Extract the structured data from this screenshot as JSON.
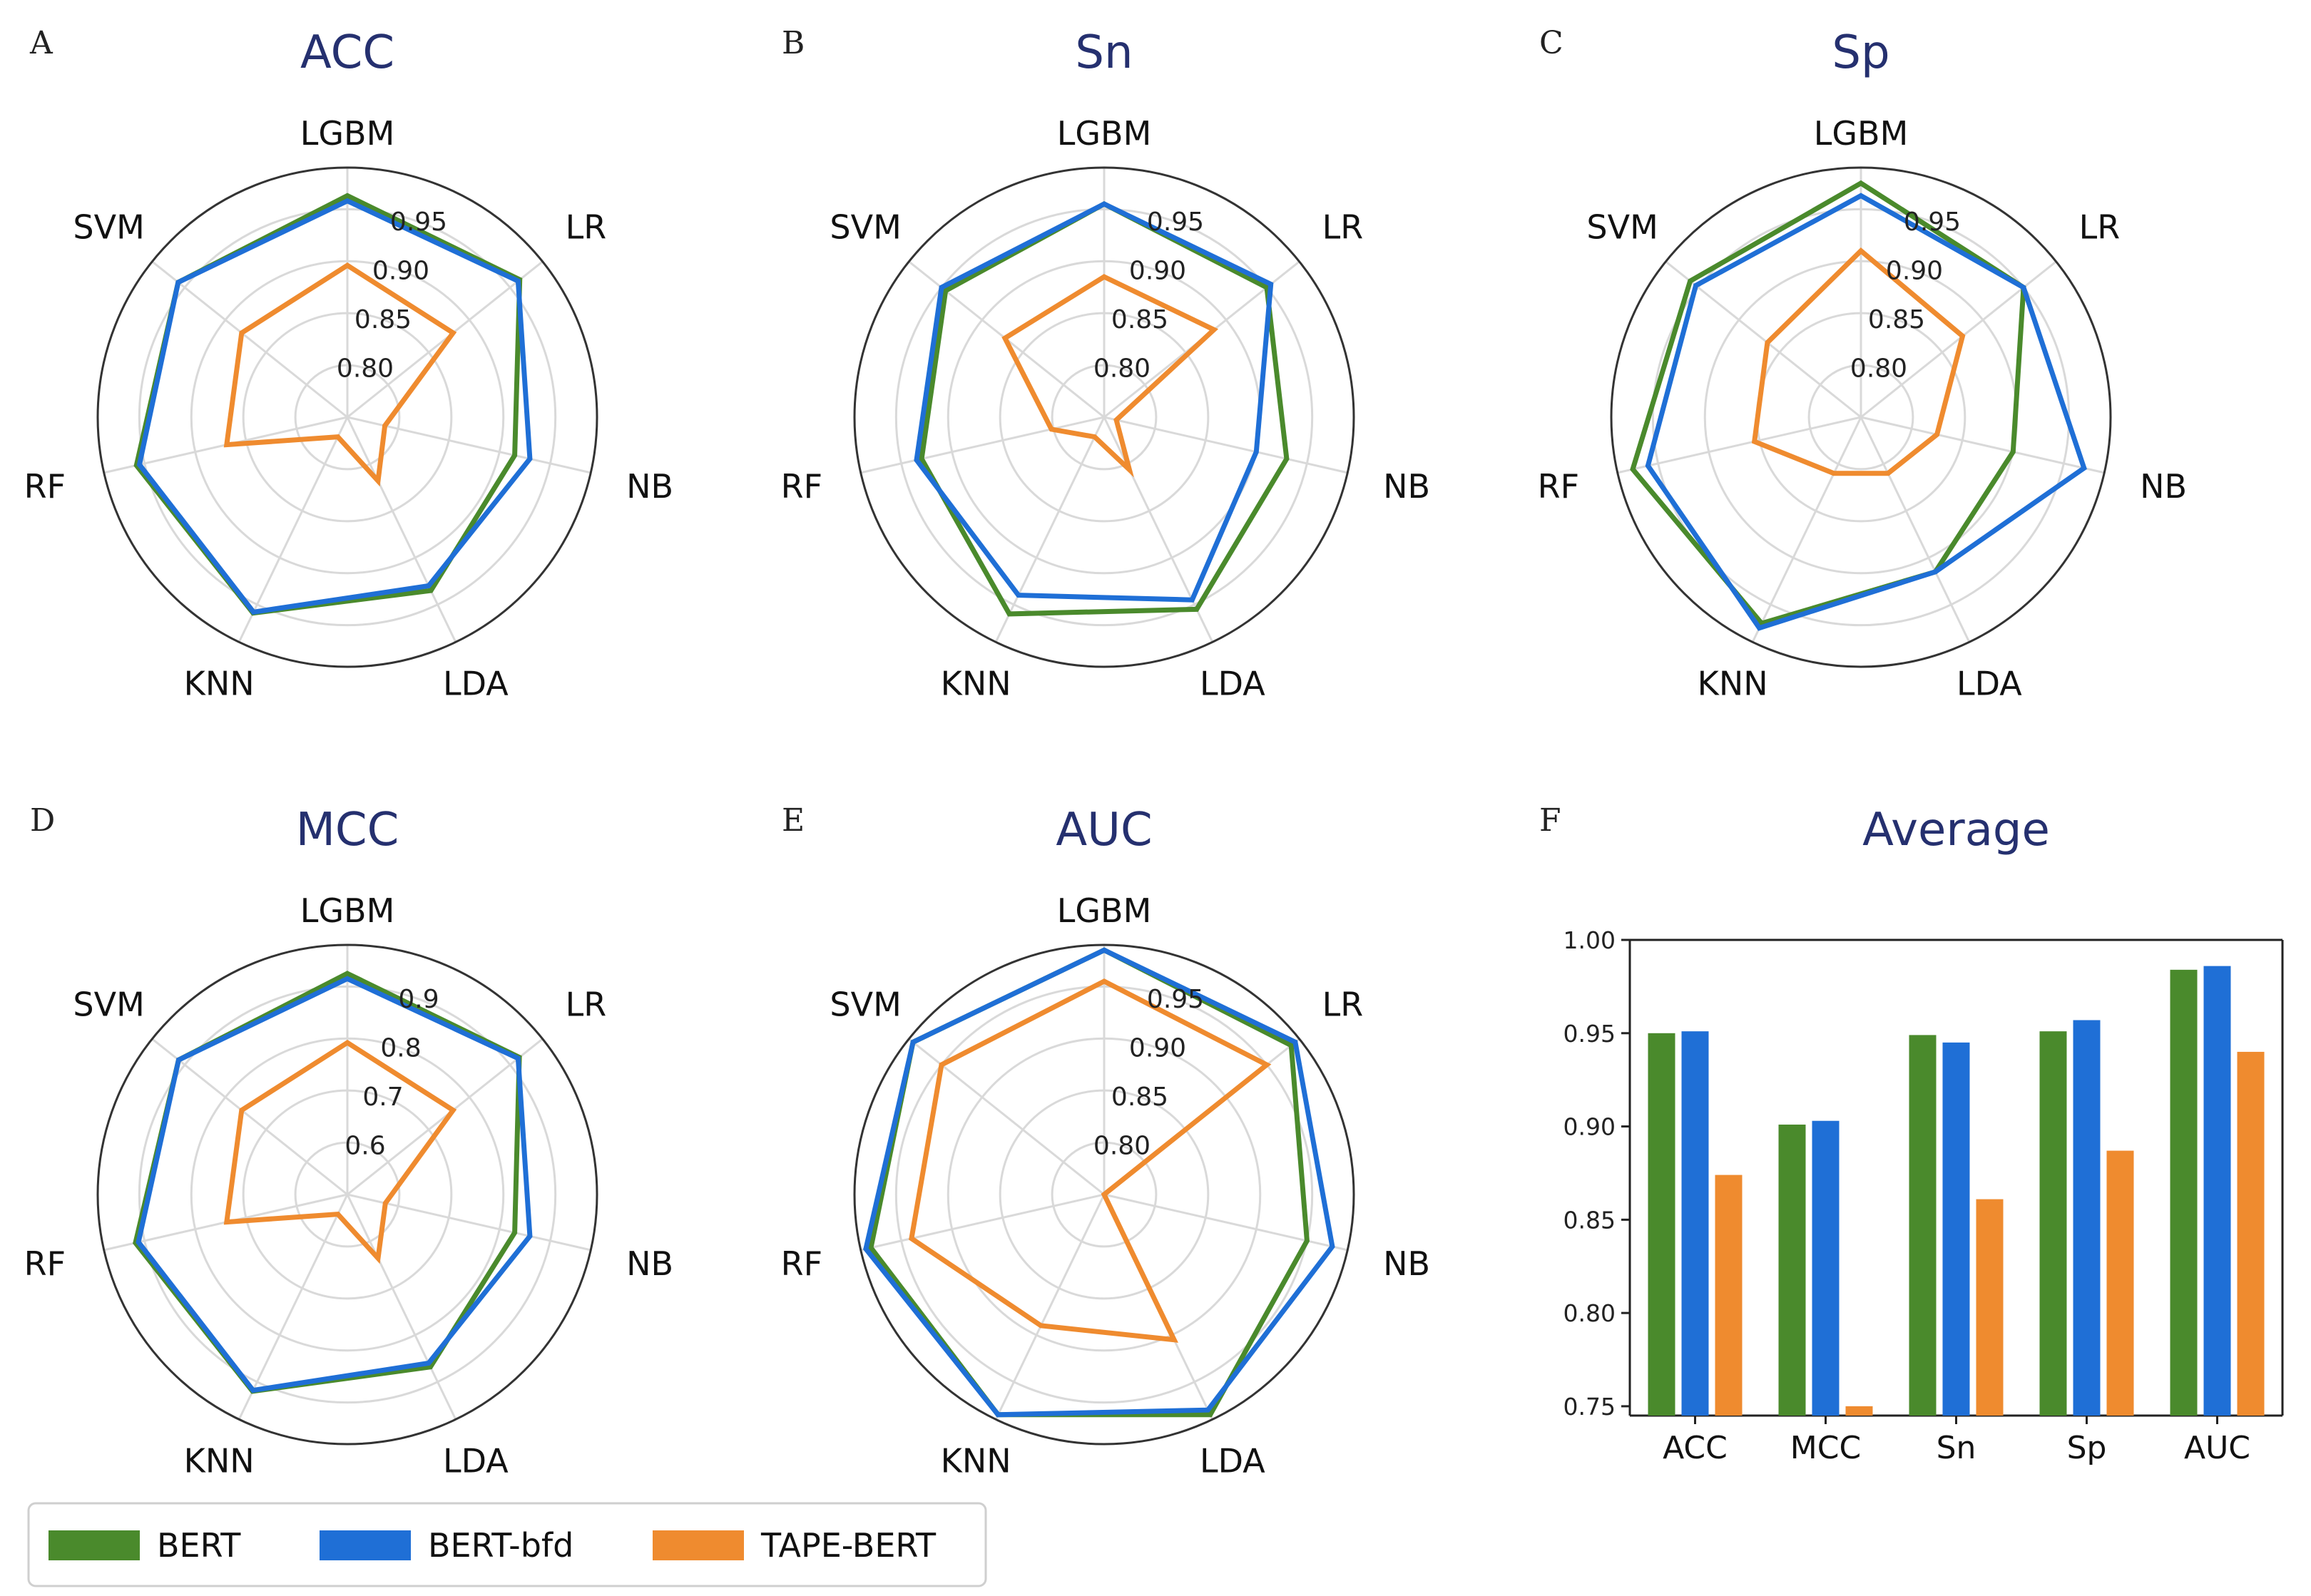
{
  "colors": {
    "BERT": "#4a8a2c",
    "BERT-bfd": "#1f6fd6",
    "TAPE-BERT": "#ef8b2f",
    "title": "#25306f"
  },
  "legend": [
    "BERT",
    "BERT-bfd",
    "TAPE-BERT"
  ],
  "chart_data": [
    {
      "type": "radar",
      "letter": "A",
      "title": "ACC",
      "axes": [
        "LGBM",
        "LR",
        "NB",
        "LDA",
        "KNN",
        "RF",
        "SVM"
      ],
      "rlim": [
        0.75,
        0.99
      ],
      "rticks": [
        0.8,
        0.85,
        0.9,
        0.95
      ],
      "rtick_labels": [
        "0.80",
        "0.85",
        "0.90",
        "0.95"
      ],
      "series": [
        {
          "name": "BERT",
          "values": [
            0.963,
            0.962,
            0.915,
            0.935,
            0.959,
            0.958,
            0.958
          ]
        },
        {
          "name": "BERT-bfd",
          "values": [
            0.958,
            0.96,
            0.93,
            0.93,
            0.958,
            0.955,
            0.958
          ]
        },
        {
          "name": "TAPE-BERT",
          "values": [
            0.896,
            0.88,
            0.787,
            0.818,
            0.771,
            0.869,
            0.88
          ]
        }
      ]
    },
    {
      "type": "radar",
      "letter": "B",
      "title": "Sn",
      "axes": [
        "LGBM",
        "LR",
        "NB",
        "LDA",
        "KNN",
        "RF",
        "SVM"
      ],
      "rlim": [
        0.75,
        0.99
      ],
      "rticks": [
        0.8,
        0.85,
        0.9,
        0.95
      ],
      "rtick_labels": [
        "0.80",
        "0.85",
        "0.90",
        "0.95"
      ],
      "series": [
        {
          "name": "BERT",
          "values": [
            0.955,
            0.95,
            0.93,
            0.955,
            0.96,
            0.93,
            0.945
          ]
        },
        {
          "name": "BERT-bfd",
          "values": [
            0.955,
            0.955,
            0.9,
            0.945,
            0.94,
            0.935,
            0.95
          ]
        },
        {
          "name": "TAPE-BERT",
          "values": [
            0.885,
            0.885,
            0.762,
            0.806,
            0.771,
            0.802,
            0.872
          ]
        }
      ]
    },
    {
      "type": "radar",
      "letter": "C",
      "title": "Sp",
      "axes": [
        "LGBM",
        "LR",
        "NB",
        "LDA",
        "KNN",
        "RF",
        "SVM"
      ],
      "rlim": [
        0.75,
        0.99
      ],
      "rticks": [
        0.8,
        0.85,
        0.9,
        0.95
      ],
      "rtick_labels": [
        "0.80",
        "0.85",
        "0.90",
        "0.95"
      ],
      "series": [
        {
          "name": "BERT",
          "values": [
            0.975,
            0.95,
            0.9,
            0.915,
            0.97,
            0.975,
            0.96
          ]
        },
        {
          "name": "BERT-bfd",
          "values": [
            0.963,
            0.95,
            0.97,
            0.915,
            0.975,
            0.96,
            0.953
          ]
        },
        {
          "name": "TAPE-BERT",
          "values": [
            0.91,
            0.875,
            0.825,
            0.81,
            0.81,
            0.855,
            0.865
          ]
        }
      ]
    },
    {
      "type": "radar",
      "letter": "D",
      "title": "MCC",
      "axes": [
        "LGBM",
        "LR",
        "NB",
        "LDA",
        "KNN",
        "RF",
        "SVM"
      ],
      "rlim": [
        0.5,
        0.98
      ],
      "rticks": [
        0.6,
        0.7,
        0.8,
        0.9
      ],
      "rtick_labels": [
        "0.6",
        "0.7",
        "0.8",
        "0.9"
      ],
      "series": [
        {
          "name": "BERT",
          "values": [
            0.925,
            0.923,
            0.83,
            0.868,
            0.92,
            0.918,
            0.915
          ]
        },
        {
          "name": "BERT-bfd",
          "values": [
            0.915,
            0.92,
            0.86,
            0.86,
            0.918,
            0.912,
            0.915
          ]
        },
        {
          "name": "TAPE-BERT",
          "values": [
            0.792,
            0.76,
            0.575,
            0.636,
            0.542,
            0.738,
            0.76
          ]
        }
      ]
    },
    {
      "type": "radar",
      "letter": "E",
      "title": "AUC",
      "axes": [
        "LGBM",
        "LR",
        "NB",
        "LDA",
        "KNN",
        "RF",
        "SVM"
      ],
      "rlim": [
        0.75,
        0.99
      ],
      "rticks": [
        0.8,
        0.85,
        0.9,
        0.95
      ],
      "rtick_labels": [
        "0.80",
        "0.85",
        "0.90",
        "0.95"
      ],
      "series": [
        {
          "name": "BERT",
          "values": [
            0.985,
            0.98,
            0.95,
            0.985,
            0.985,
            0.98,
            0.985
          ]
        },
        {
          "name": "BERT-bfd",
          "values": [
            0.985,
            0.985,
            0.975,
            0.98,
            0.985,
            0.985,
            0.985
          ]
        },
        {
          "name": "TAPE-BERT",
          "values": [
            0.955,
            0.95,
            0.75,
            0.905,
            0.89,
            0.94,
            0.95
          ]
        }
      ]
    },
    {
      "type": "bar",
      "letter": "F",
      "title": "Average",
      "categories": [
        "ACC",
        "MCC",
        "Sn",
        "Sp",
        "AUC"
      ],
      "ylim": [
        0.745,
        1.0
      ],
      "yticks": [
        0.75,
        0.8,
        0.85,
        0.9,
        0.95,
        1.0
      ],
      "ytick_labels": [
        "0.75",
        "0.80",
        "0.85",
        "0.90",
        "0.95",
        "1.00"
      ],
      "series": [
        {
          "name": "BERT",
          "values": [
            0.95,
            0.901,
            0.949,
            0.951,
            0.984
          ]
        },
        {
          "name": "BERT-bfd",
          "values": [
            0.951,
            0.903,
            0.945,
            0.957,
            0.986
          ]
        },
        {
          "name": "TAPE-BERT",
          "values": [
            0.874,
            0.75,
            0.861,
            0.887,
            0.94
          ]
        }
      ]
    }
  ]
}
